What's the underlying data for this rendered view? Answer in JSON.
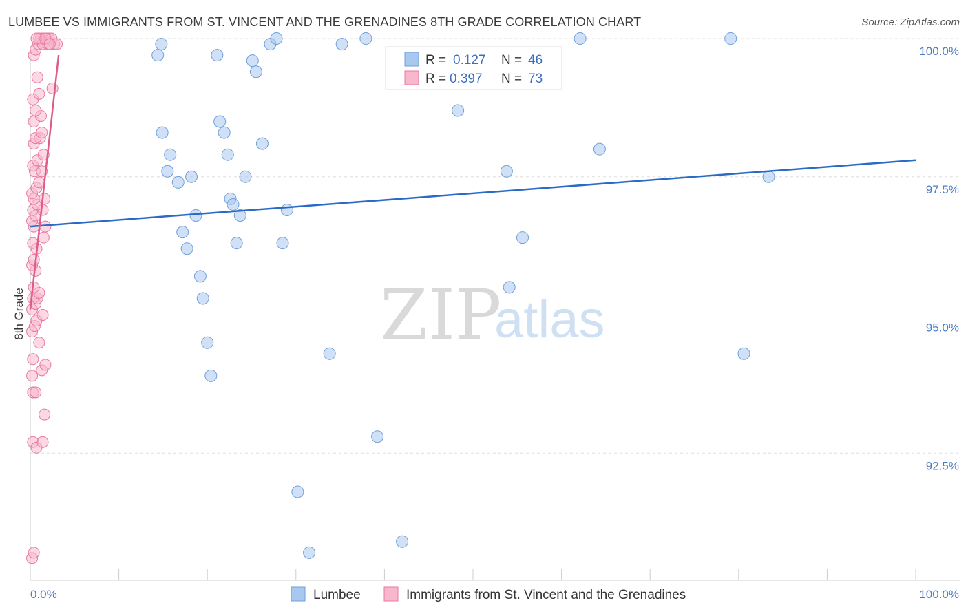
{
  "title": "LUMBEE VS IMMIGRANTS FROM ST. VINCENT AND THE GRENADINES 8TH GRADE CORRELATION CHART",
  "source": "Source: ZipAtlas.com",
  "watermark": {
    "zip": "ZIP",
    "atlas": "atlas"
  },
  "colors": {
    "blue": "#a9c8f0",
    "blue_stroke": "#6f9fd8",
    "blue_line": "#2a6bc7",
    "pink": "#f7b8cd",
    "pink_stroke": "#e8789e",
    "pink_line": "#e05a8c"
  },
  "legend": {
    "r_label": "R =",
    "n_label": "N =",
    "rows": [
      {
        "r": "0.127",
        "n": "46"
      },
      {
        "r": "0.397",
        "n": "73"
      }
    ]
  },
  "chart_data": {
    "type": "scatter",
    "ylabel": "8th Grade",
    "xlim": [
      0,
      100
    ],
    "ylim": [
      90.2,
      100.2
    ],
    "x_tick_labels": [
      "0.0%",
      "100.0%"
    ],
    "y_ticks": [
      {
        "value": 92.5,
        "label": "92.5%"
      },
      {
        "value": 95.0,
        "label": "95.0%"
      },
      {
        "value": 97.5,
        "label": "97.5%"
      },
      {
        "value": 100.0,
        "label": "100.0%"
      }
    ],
    "grid": true,
    "legend_placement": "bottom",
    "series": [
      {
        "name": "Lumbee",
        "trend": {
          "x": [
            0,
            100
          ],
          "y": [
            96.6,
            97.8
          ]
        },
        "points": [
          [
            14.4,
            99.7
          ],
          [
            14.8,
            99.9
          ],
          [
            14.9,
            98.3
          ],
          [
            15.5,
            97.6
          ],
          [
            15.8,
            97.9
          ],
          [
            16.7,
            97.4
          ],
          [
            17.2,
            96.5
          ],
          [
            17.7,
            96.2
          ],
          [
            18.2,
            97.5
          ],
          [
            18.7,
            96.8
          ],
          [
            19.2,
            95.7
          ],
          [
            19.5,
            95.3
          ],
          [
            20.0,
            94.5
          ],
          [
            20.4,
            93.9
          ],
          [
            21.1,
            99.7
          ],
          [
            21.4,
            98.5
          ],
          [
            21.9,
            98.3
          ],
          [
            22.3,
            97.9
          ],
          [
            22.6,
            97.1
          ],
          [
            22.9,
            97.0
          ],
          [
            23.3,
            96.3
          ],
          [
            23.7,
            96.8
          ],
          [
            24.3,
            97.5
          ],
          [
            25.1,
            99.6
          ],
          [
            25.5,
            99.4
          ],
          [
            26.2,
            98.1
          ],
          [
            27.1,
            99.9
          ],
          [
            27.8,
            100.0
          ],
          [
            28.5,
            96.3
          ],
          [
            29.0,
            96.9
          ],
          [
            30.2,
            91.8
          ],
          [
            31.5,
            90.7
          ],
          [
            33.8,
            94.3
          ],
          [
            35.2,
            99.9
          ],
          [
            37.9,
            100.0
          ],
          [
            39.2,
            92.8
          ],
          [
            42.0,
            90.9
          ],
          [
            48.3,
            98.7
          ],
          [
            53.8,
            97.6
          ],
          [
            54.1,
            95.5
          ],
          [
            55.6,
            96.4
          ],
          [
            62.1,
            100.0
          ],
          [
            64.3,
            98.0
          ],
          [
            79.1,
            100.0
          ],
          [
            80.6,
            94.3
          ],
          [
            83.4,
            97.5
          ]
        ]
      },
      {
        "name": "Immigrants from St. Vincent and the Grenadines",
        "trend": {
          "x": [
            0,
            3.2
          ],
          "y": [
            95.1,
            99.7
          ]
        },
        "points": [
          [
            0.2,
            90.6
          ],
          [
            0.4,
            90.7
          ],
          [
            0.3,
            92.7
          ],
          [
            0.7,
            92.6
          ],
          [
            1.4,
            92.7
          ],
          [
            1.6,
            93.2
          ],
          [
            0.3,
            93.6
          ],
          [
            0.6,
            93.6
          ],
          [
            0.2,
            93.9
          ],
          [
            1.3,
            94.0
          ],
          [
            1.7,
            94.1
          ],
          [
            0.3,
            94.2
          ],
          [
            1.0,
            94.5
          ],
          [
            0.2,
            94.7
          ],
          [
            0.5,
            94.8
          ],
          [
            0.7,
            94.9
          ],
          [
            1.4,
            95.0
          ],
          [
            0.2,
            95.1
          ],
          [
            0.6,
            95.2
          ],
          [
            0.3,
            95.3
          ],
          [
            0.8,
            95.3
          ],
          [
            1.0,
            95.4
          ],
          [
            0.4,
            95.5
          ],
          [
            0.6,
            95.8
          ],
          [
            0.2,
            95.9
          ],
          [
            0.4,
            96.0
          ],
          [
            0.7,
            96.2
          ],
          [
            0.3,
            96.3
          ],
          [
            1.5,
            96.4
          ],
          [
            0.4,
            96.6
          ],
          [
            1.7,
            96.6
          ],
          [
            0.2,
            96.7
          ],
          [
            0.6,
            96.8
          ],
          [
            0.3,
            96.9
          ],
          [
            1.4,
            96.9
          ],
          [
            0.8,
            97.0
          ],
          [
            0.4,
            97.1
          ],
          [
            1.6,
            97.1
          ],
          [
            0.2,
            97.2
          ],
          [
            0.7,
            97.3
          ],
          [
            1.0,
            97.4
          ],
          [
            0.5,
            97.6
          ],
          [
            1.3,
            97.6
          ],
          [
            0.3,
            97.7
          ],
          [
            0.8,
            97.8
          ],
          [
            1.5,
            97.9
          ],
          [
            0.4,
            98.1
          ],
          [
            1.1,
            98.2
          ],
          [
            0.6,
            98.2
          ],
          [
            1.3,
            98.3
          ],
          [
            0.4,
            98.5
          ],
          [
            1.2,
            98.6
          ],
          [
            0.6,
            98.7
          ],
          [
            0.3,
            98.9
          ],
          [
            1.0,
            99.0
          ],
          [
            2.5,
            99.1
          ],
          [
            0.8,
            99.3
          ],
          [
            0.4,
            99.7
          ],
          [
            0.6,
            99.8
          ],
          [
            0.9,
            99.9
          ],
          [
            1.2,
            100.0
          ],
          [
            1.5,
            100.0
          ],
          [
            1.8,
            100.0
          ],
          [
            2.1,
            100.0
          ],
          [
            2.4,
            100.0
          ],
          [
            2.7,
            99.9
          ],
          [
            3.0,
            99.9
          ],
          [
            1.0,
            100.0
          ],
          [
            1.4,
            99.9
          ],
          [
            2.0,
            99.9
          ],
          [
            0.7,
            100.0
          ],
          [
            1.7,
            100.0
          ],
          [
            2.2,
            99.9
          ]
        ]
      }
    ]
  },
  "bottom_legend": [
    "Lumbee",
    "Immigrants from St. Vincent and the Grenadines"
  ]
}
